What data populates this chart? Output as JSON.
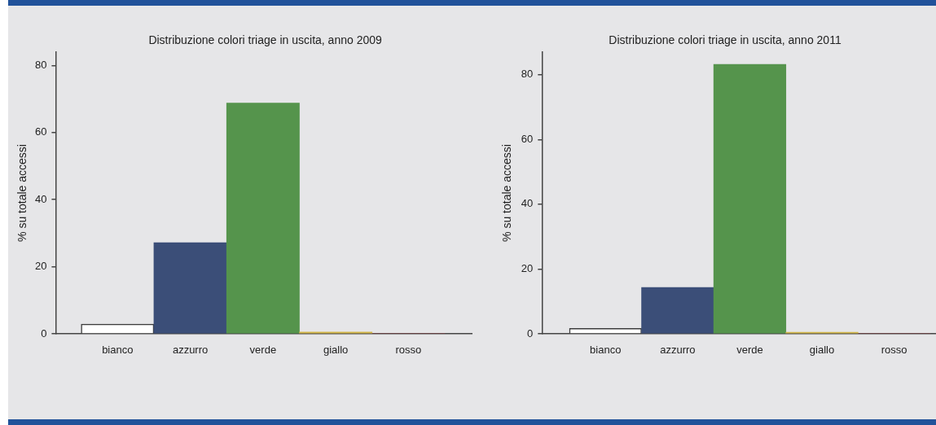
{
  "chart_data": [
    {
      "type": "bar",
      "title": "Distribuzione colori triage in uscita, anno 2009",
      "ylabel": "% su totale accessi",
      "categories": [
        "bianco",
        "azzurro",
        "verde",
        "giallo",
        "rosso"
      ],
      "values": [
        2.9,
        27.2,
        68.8,
        0.5,
        0
      ],
      "colors": [
        "#ffffff",
        "#3b4e78",
        "#55944c",
        "#d4b84a",
        "#c8323c"
      ],
      "ylim": [
        0,
        84
      ],
      "yticks": [
        0,
        20,
        40,
        60,
        80
      ]
    },
    {
      "type": "bar",
      "title": "Distribuzione colori triage in uscita, anno 2011",
      "ylabel": "% su totale accessi",
      "categories": [
        "bianco",
        "azzurro",
        "verde",
        "giallo",
        "rosso"
      ],
      "values": [
        1.7,
        14.3,
        83.2,
        0.5,
        0
      ],
      "colors": [
        "#ffffff",
        "#3b4e78",
        "#55944c",
        "#d4b84a",
        "#c8323c"
      ],
      "ylim": [
        0,
        87
      ],
      "yticks": [
        0,
        20,
        40,
        60,
        80
      ]
    }
  ]
}
